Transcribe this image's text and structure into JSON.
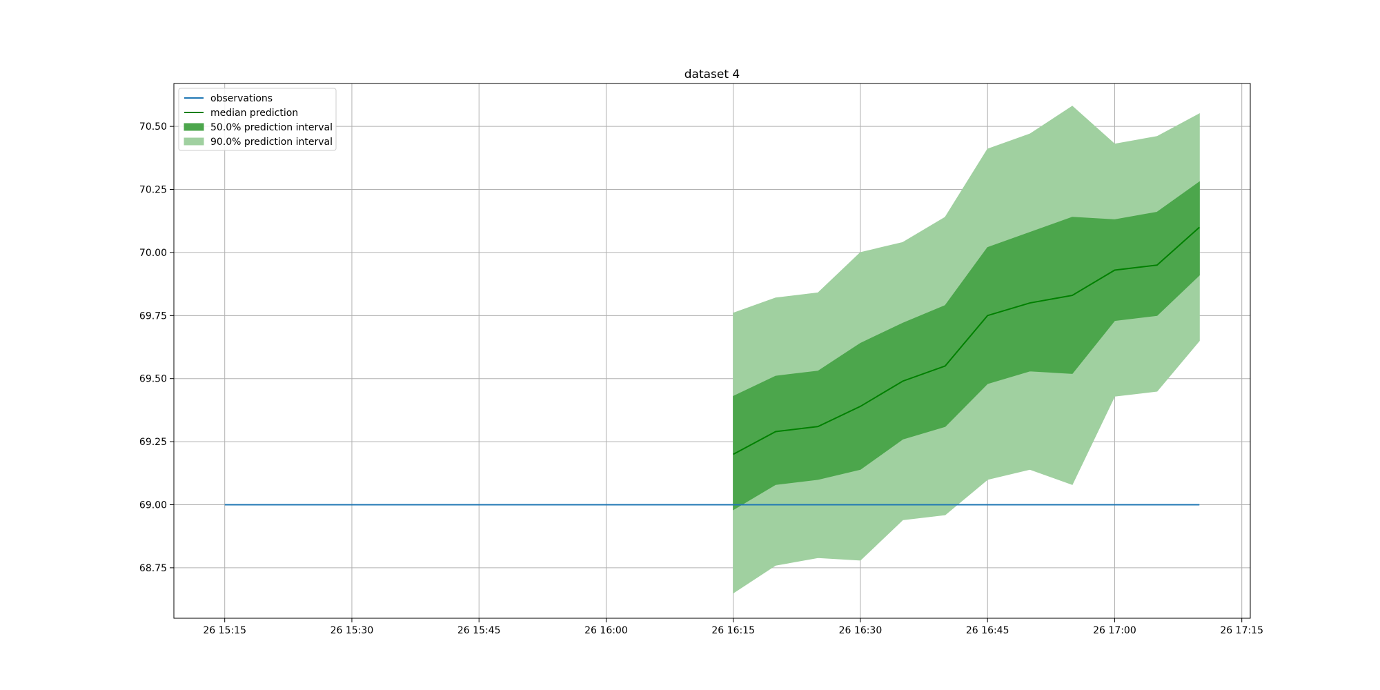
{
  "chart_data": {
    "type": "line",
    "title": "dataset 4",
    "xlabel": "",
    "ylabel": "",
    "grid": true,
    "legend_position": "upper-left",
    "x_tick_labels": [
      "26 15:15",
      "26 15:30",
      "26 15:45",
      "26 16:00",
      "26 16:15",
      "26 16:30",
      "26 16:45",
      "26 17:00",
      "26 17:15"
    ],
    "y_tick_labels": [
      "68.75",
      "69.00",
      "69.25",
      "69.50",
      "69.75",
      "70.00",
      "70.25",
      "70.50"
    ],
    "y_ticks": [
      68.75,
      69.0,
      69.25,
      69.5,
      69.75,
      70.0,
      70.25,
      70.5
    ],
    "xlim": [
      "15:09",
      "17:16"
    ],
    "ylim": [
      68.55,
      70.67
    ],
    "colors": {
      "observations": "#1f77b4",
      "median": "#008000",
      "interval50": "#4ca64c",
      "interval90": "#a0d0a0"
    },
    "legend": [
      {
        "label": "observations",
        "kind": "line",
        "color": "#1f77b4"
      },
      {
        "label": "median prediction",
        "kind": "line",
        "color": "#008000"
      },
      {
        "label": "50.0% prediction interval",
        "kind": "patch",
        "color": "#4ca64c"
      },
      {
        "label": "90.0% prediction interval",
        "kind": "patch",
        "color": "#a0d0a0"
      }
    ],
    "observations": {
      "name": "observations",
      "x": [
        "15:15",
        "17:10"
      ],
      "y": [
        69.0,
        69.0
      ]
    },
    "forecast": {
      "x": [
        "16:15",
        "16:20",
        "16:25",
        "16:30",
        "16:35",
        "16:40",
        "16:45",
        "16:50",
        "16:55",
        "17:00",
        "17:05",
        "17:10"
      ],
      "median": [
        69.2,
        69.29,
        69.31,
        69.39,
        69.49,
        69.55,
        69.75,
        69.8,
        69.83,
        69.93,
        69.95,
        70.1
      ],
      "q25": [
        68.98,
        69.08,
        69.1,
        69.14,
        69.26,
        69.31,
        69.48,
        69.53,
        69.52,
        69.73,
        69.75,
        69.91
      ],
      "q75": [
        69.43,
        69.51,
        69.53,
        69.64,
        69.72,
        69.79,
        70.02,
        70.08,
        70.14,
        70.13,
        70.16,
        70.28
      ],
      "q05": [
        68.65,
        68.76,
        68.79,
        68.78,
        68.94,
        68.96,
        69.1,
        69.14,
        69.08,
        69.43,
        69.45,
        69.65
      ],
      "q95": [
        69.76,
        69.82,
        69.84,
        70.0,
        70.04,
        70.14,
        70.41,
        70.47,
        70.58,
        70.43,
        70.46,
        70.55
      ]
    }
  }
}
